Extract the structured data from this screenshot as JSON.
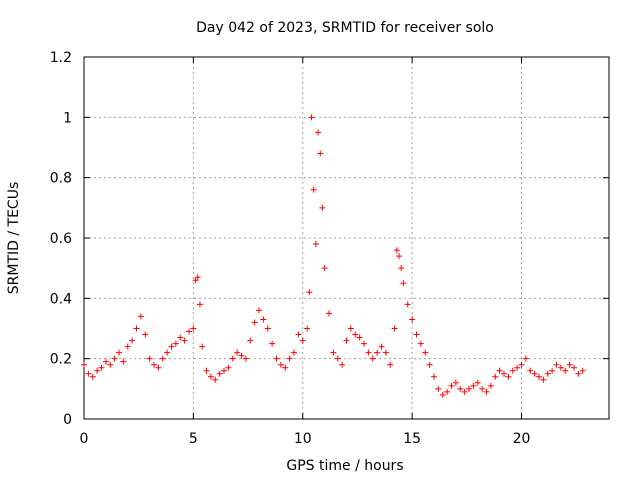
{
  "chart_data": {
    "type": "scatter",
    "title": "Day 042 of 2023, SRMTID for receiver solo",
    "xlabel": "GPS time / hours",
    "ylabel": "SRMTID / TECUs",
    "xlim": [
      0,
      24
    ],
    "ylim": [
      0,
      1.2
    ],
    "x_ticks": [
      0,
      5,
      10,
      15,
      20
    ],
    "x_tick_labels": [
      "0",
      "5",
      "10",
      "15",
      "20"
    ],
    "y_ticks": [
      0,
      0.2,
      0.4,
      0.6,
      0.8,
      1.0,
      1.2
    ],
    "y_tick_labels": [
      "0",
      "0.2",
      "0.4",
      "0.6",
      "0.8",
      "1",
      "1.2"
    ],
    "grid": true,
    "marker": "plus",
    "color": "#ff0000",
    "series": [
      {
        "name": "SRMTID",
        "x": [
          0.0,
          0.2,
          0.4,
          0.6,
          0.8,
          1.0,
          1.2,
          1.4,
          1.6,
          1.8,
          2.0,
          2.2,
          2.4,
          2.6,
          2.8,
          3.0,
          3.2,
          3.4,
          3.6,
          3.8,
          4.0,
          4.2,
          4.4,
          4.6,
          4.8,
          5.0,
          5.1,
          5.2,
          5.3,
          5.4,
          5.6,
          5.8,
          6.0,
          6.2,
          6.4,
          6.6,
          6.8,
          7.0,
          7.2,
          7.4,
          7.6,
          7.8,
          8.0,
          8.2,
          8.4,
          8.6,
          8.8,
          9.0,
          9.2,
          9.4,
          9.6,
          9.8,
          10.0,
          10.2,
          10.3,
          10.4,
          10.5,
          10.6,
          10.7,
          10.8,
          10.9,
          11.0,
          11.2,
          11.4,
          11.6,
          11.8,
          12.0,
          12.2,
          12.4,
          12.6,
          12.8,
          13.0,
          13.2,
          13.4,
          13.6,
          13.8,
          14.0,
          14.2,
          14.3,
          14.4,
          14.5,
          14.6,
          14.8,
          15.0,
          15.2,
          15.4,
          15.6,
          15.8,
          16.0,
          16.2,
          16.4,
          16.6,
          16.8,
          17.0,
          17.2,
          17.4,
          17.6,
          17.8,
          18.0,
          18.2,
          18.4,
          18.6,
          18.8,
          19.0,
          19.2,
          19.4,
          19.6,
          19.8,
          20.0,
          20.2,
          20.4,
          20.6,
          20.8,
          21.0,
          21.2,
          21.4,
          21.6,
          21.8,
          22.0,
          22.2,
          22.4,
          22.6,
          22.8
        ],
        "y": [
          0.18,
          0.15,
          0.14,
          0.16,
          0.17,
          0.19,
          0.18,
          0.2,
          0.22,
          0.19,
          0.24,
          0.26,
          0.3,
          0.34,
          0.28,
          0.2,
          0.18,
          0.17,
          0.2,
          0.22,
          0.24,
          0.25,
          0.27,
          0.26,
          0.29,
          0.3,
          0.46,
          0.47,
          0.38,
          0.24,
          0.16,
          0.14,
          0.13,
          0.15,
          0.16,
          0.17,
          0.2,
          0.22,
          0.21,
          0.2,
          0.26,
          0.32,
          0.36,
          0.33,
          0.3,
          0.25,
          0.2,
          0.18,
          0.17,
          0.2,
          0.22,
          0.28,
          0.26,
          0.3,
          0.42,
          1.0,
          0.76,
          0.58,
          0.95,
          0.88,
          0.7,
          0.5,
          0.35,
          0.22,
          0.2,
          0.18,
          0.26,
          0.3,
          0.28,
          0.27,
          0.25,
          0.22,
          0.2,
          0.22,
          0.24,
          0.22,
          0.18,
          0.3,
          0.56,
          0.54,
          0.5,
          0.45,
          0.38,
          0.33,
          0.28,
          0.25,
          0.22,
          0.18,
          0.14,
          0.1,
          0.08,
          0.09,
          0.11,
          0.12,
          0.1,
          0.09,
          0.1,
          0.11,
          0.12,
          0.1,
          0.09,
          0.11,
          0.14,
          0.16,
          0.15,
          0.14,
          0.16,
          0.17,
          0.18,
          0.2,
          0.16,
          0.15,
          0.14,
          0.13,
          0.15,
          0.16,
          0.18,
          0.17,
          0.16,
          0.18,
          0.17,
          0.15,
          0.16
        ]
      }
    ]
  }
}
